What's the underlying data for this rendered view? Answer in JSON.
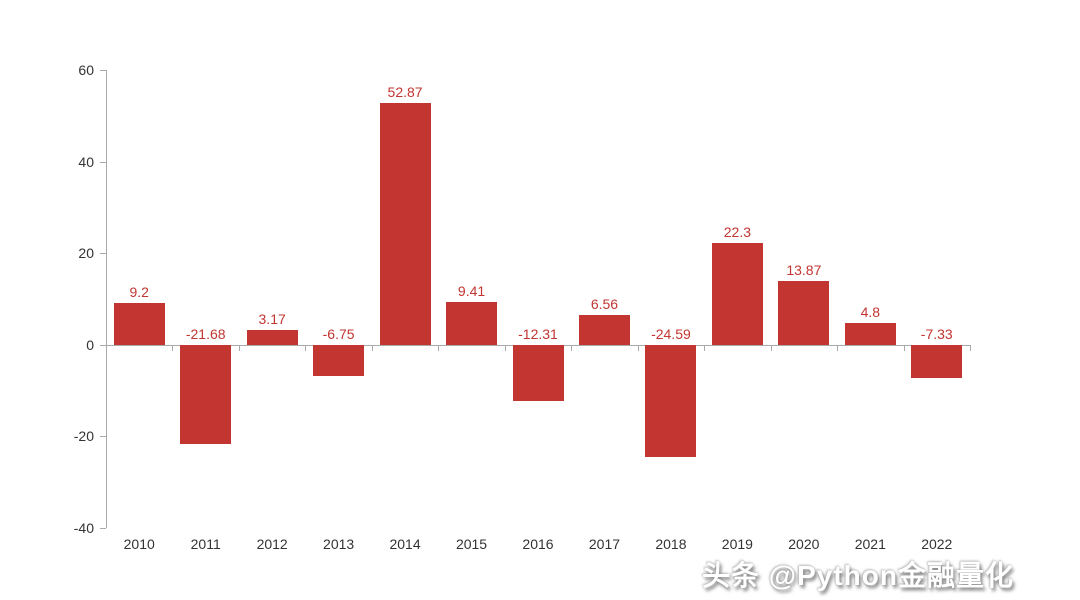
{
  "chart_data": {
    "type": "bar",
    "title": "",
    "xlabel": "",
    "ylabel": "",
    "categories": [
      "2010",
      "2011",
      "2012",
      "2013",
      "2014",
      "2015",
      "2016",
      "2017",
      "2018",
      "2019",
      "2020",
      "2021",
      "2022"
    ],
    "values": [
      9.2,
      -21.68,
      3.17,
      -6.75,
      52.87,
      9.41,
      -12.31,
      6.56,
      -24.59,
      22.3,
      13.87,
      4.8,
      -7.33
    ],
    "value_labels": [
      "9.2",
      "-21.68",
      "3.17",
      "-6.75",
      "52.87",
      "9.41",
      "-12.31",
      "6.56",
      "-24.59",
      "22.3",
      "13.87",
      "4.8",
      "-7.33"
    ],
    "yticks": [
      60,
      40,
      20,
      0,
      -20,
      -40
    ],
    "ylim": [
      -40,
      60
    ],
    "grid": false,
    "legend": false,
    "bar_color": "#c23531",
    "label_color": "#c23531",
    "axis_color": "#aaaaaa",
    "tick_label_color": "#333333"
  },
  "watermark": {
    "text": "头条 @Python金融量化"
  }
}
